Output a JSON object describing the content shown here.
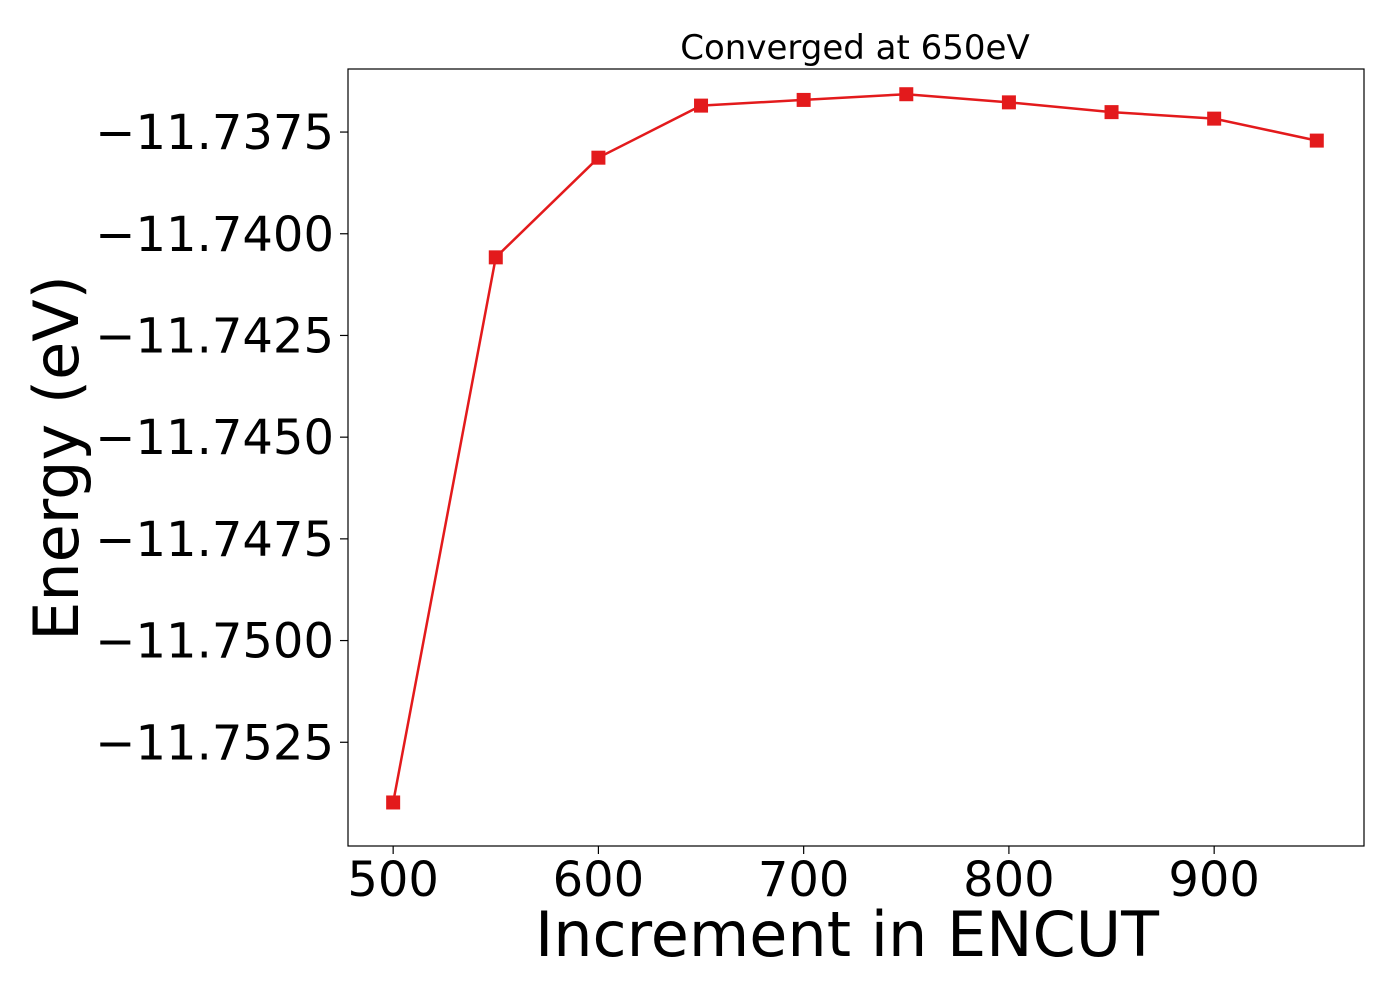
{
  "chart_data": {
    "type": "line",
    "title": "Converged at 650eV",
    "xlabel": "Increment in ENCUT",
    "ylabel": "Energy (eV)",
    "xlim": [
      478,
      973
    ],
    "ylim": [
      -11.75505,
      -11.73595
    ],
    "x_ticks": [
      500,
      600,
      700,
      800,
      900
    ],
    "x_tick_labels": [
      "500",
      "600",
      "700",
      "800",
      "900"
    ],
    "y_ticks": [
      -11.7375,
      -11.74,
      -11.7425,
      -11.745,
      -11.7475,
      -11.75,
      -11.7525
    ],
    "y_tick_labels": [
      "−11.7375",
      "−11.7400",
      "−11.7425",
      "−11.7450",
      "−11.7475",
      "−11.7500",
      "−11.7525"
    ],
    "grid": false,
    "legend": false,
    "series": [
      {
        "color": "#e31a1c",
        "marker": "square",
        "x": [
          500,
          550,
          600,
          650,
          700,
          750,
          800,
          850,
          900,
          950
        ],
        "y": [
          -11.75398,
          -11.74058,
          -11.73813,
          -11.73685,
          -11.73671,
          -11.73657,
          -11.73677,
          -11.73701,
          -11.73717,
          -11.73771
        ]
      }
    ]
  }
}
